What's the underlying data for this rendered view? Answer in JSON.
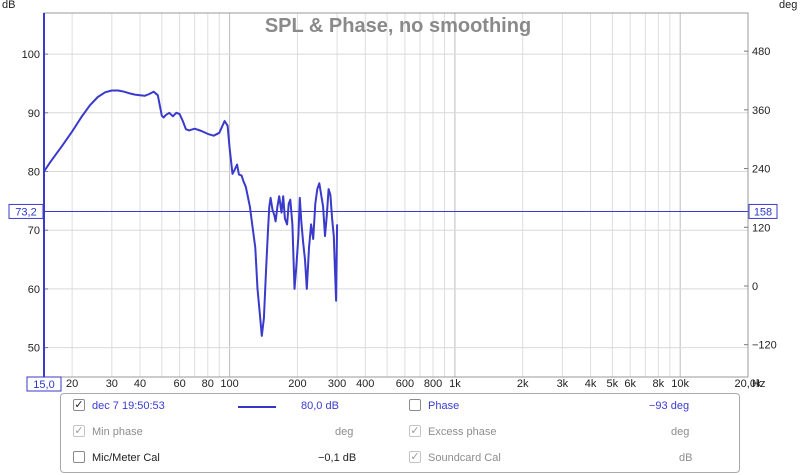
{
  "chart_data": {
    "type": "line",
    "title": "SPL & Phase, no smoothing",
    "left_axis_unit": "dB",
    "right_axis_unit": "deg",
    "x_unit": "Hz",
    "x_scale": "log",
    "xlim": [
      15,
      20000
    ],
    "ylim_left": [
      45,
      107
    ],
    "ylim_right": [
      -186,
      558
    ],
    "x_ticks": [
      {
        "v": 20,
        "label": "20"
      },
      {
        "v": 30,
        "label": "30"
      },
      {
        "v": 40,
        "label": "40"
      },
      {
        "v": 60,
        "label": "60"
      },
      {
        "v": 80,
        "label": "80"
      },
      {
        "v": 100,
        "label": "100"
      },
      {
        "v": 200,
        "label": "200"
      },
      {
        "v": 300,
        "label": "300"
      },
      {
        "v": 400,
        "label": "400"
      },
      {
        "v": 600,
        "label": "600"
      },
      {
        "v": 800,
        "label": "800"
      },
      {
        "v": 1000,
        "label": "1k"
      },
      {
        "v": 2000,
        "label": "2k"
      },
      {
        "v": 3000,
        "label": "3k"
      },
      {
        "v": 4000,
        "label": "4k"
      },
      {
        "v": 5000,
        "label": "5k"
      },
      {
        "v": 6000,
        "label": "6k"
      },
      {
        "v": 8000,
        "label": "8k"
      },
      {
        "v": 10000,
        "label": "10k"
      },
      {
        "v": 20000,
        "label": "20,0k"
      }
    ],
    "left_ticks": [
      50,
      60,
      70,
      80,
      90,
      100
    ],
    "right_ticks": [
      -120,
      0,
      120,
      240,
      360,
      480
    ],
    "cursor": {
      "y_left": 73.2,
      "y_left_label": "73,2",
      "y_right_label": "158",
      "x_label": "15,0"
    },
    "grid": true,
    "color": "#3a3acb",
    "series": [
      {
        "name": "dec 7 19:50:53",
        "x": [
          15,
          16,
          17,
          18,
          20,
          22,
          24,
          26,
          28,
          30,
          32,
          34,
          36,
          38,
          40,
          42,
          44,
          46,
          48,
          50,
          51,
          52,
          54,
          56,
          58,
          60,
          62,
          64,
          66,
          70,
          75,
          80,
          85,
          90,
          95,
          98,
          100,
          103,
          105,
          108,
          110,
          113,
          115,
          118,
          120,
          123,
          126,
          130,
          133,
          136,
          139,
          142,
          145,
          148,
          150,
          152,
          155,
          158,
          160,
          163,
          166,
          170,
          173,
          176,
          180,
          183,
          186,
          190,
          194,
          198,
          202,
          205,
          208,
          212,
          216,
          220,
          225,
          230,
          235,
          240,
          245,
          250,
          255,
          260,
          265,
          270,
          275,
          280,
          285,
          290,
          293,
          297,
          300
        ],
        "y": [
          80.0,
          81.6,
          83.0,
          84.3,
          86.8,
          89.3,
          91.3,
          92.7,
          93.5,
          93.8,
          93.8,
          93.6,
          93.3,
          93.1,
          93.0,
          92.9,
          93.2,
          93.6,
          93.0,
          89.5,
          89.2,
          89.6,
          90.0,
          89.4,
          90.0,
          89.8,
          88.6,
          87.2,
          87.0,
          87.3,
          86.9,
          86.4,
          86.1,
          86.6,
          88.6,
          87.8,
          84.0,
          79.6,
          80.2,
          81.2,
          79.5,
          79.3,
          78.4,
          77.4,
          76.0,
          74.0,
          71.0,
          67.0,
          60.0,
          56.0,
          52.0,
          55.0,
          63.0,
          70.0,
          74.0,
          75.5,
          73.5,
          72.5,
          71.5,
          74.0,
          75.8,
          73.0,
          75.8,
          72.0,
          71.0,
          74.5,
          75.2,
          71.0,
          60.0,
          64.0,
          69.0,
          75.5,
          71.5,
          68.0,
          65.0,
          60.0,
          67.0,
          71.0,
          68.5,
          74.5,
          77.0,
          78.0,
          76.0,
          74.0,
          69.0,
          72.5,
          77.0,
          76.0,
          72.0,
          69.0,
          64.0,
          58.0,
          71.0
        ]
      }
    ]
  },
  "legend": {
    "row1": {
      "name": "dec 7 19:50:53",
      "value": "80,0 dB",
      "phase_label": "Phase",
      "phase_value": "−93 deg",
      "check": "✓"
    },
    "row2": {
      "min_phase": "Min phase",
      "min_phase_unit": "deg",
      "excess_phase": "Excess phase",
      "excess_unit": "deg",
      "check": "✓"
    },
    "row3": {
      "mic_cal": "Mic/Meter Cal",
      "mic_value": "−0,1 dB",
      "soundcard_cal": "Soundcard Cal",
      "soundcard_unit": "dB",
      "check": "✓"
    }
  }
}
